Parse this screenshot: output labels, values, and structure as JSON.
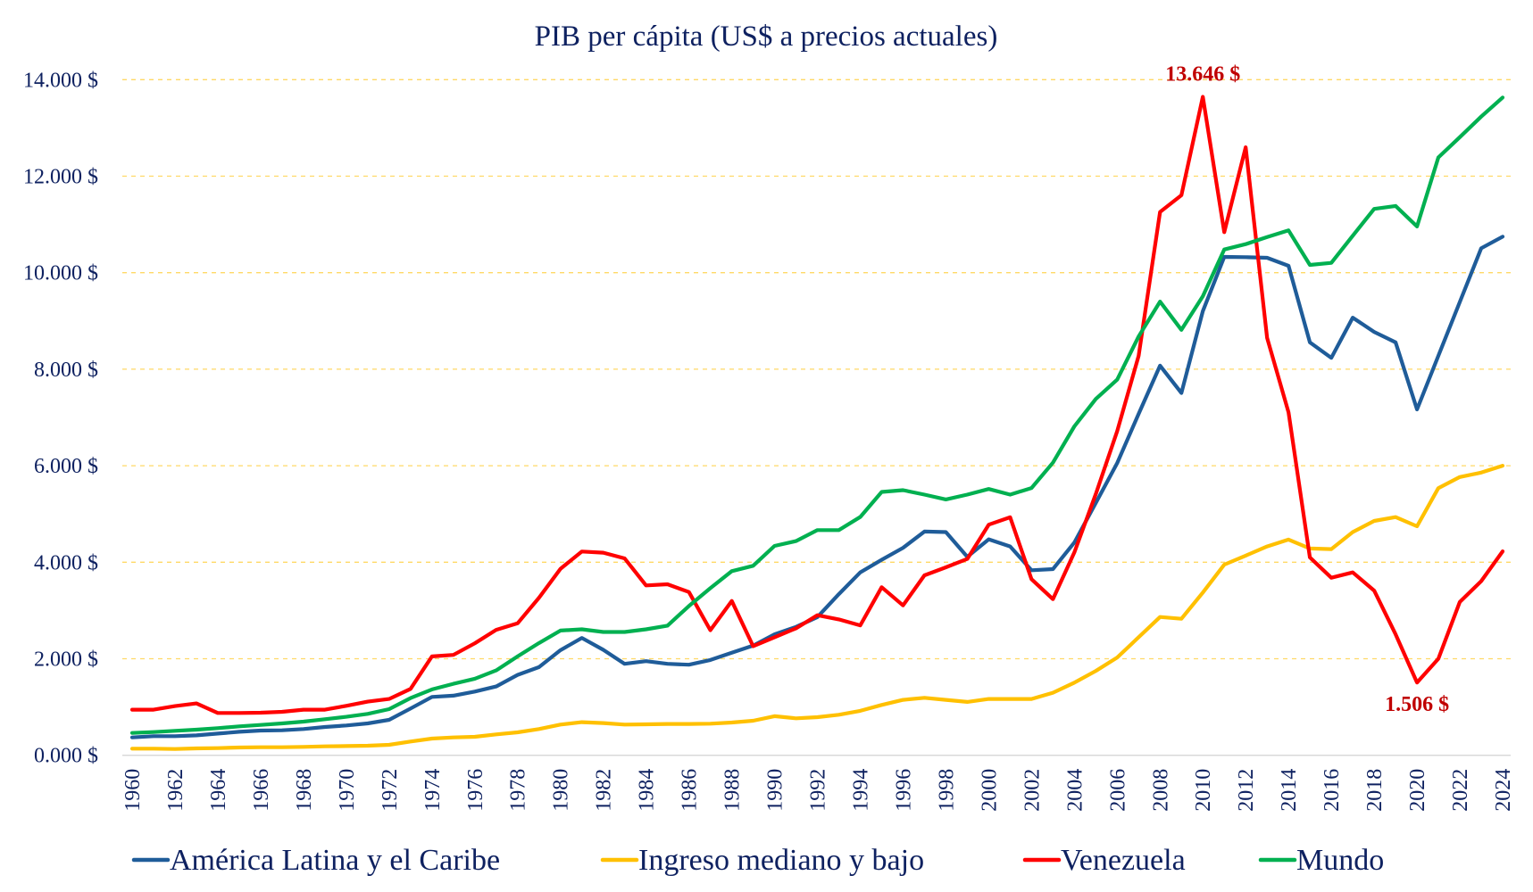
{
  "chart_data": {
    "type": "line",
    "title": "PIB per cápita (US$ a precios actuales)",
    "xlabel": "",
    "ylabel": "",
    "ylim": [
      0,
      14000
    ],
    "yticks": [
      0,
      2000,
      4000,
      6000,
      8000,
      10000,
      12000,
      14000
    ],
    "ytick_labels": [
      "0.000 $",
      "2.000 $",
      "4.000 $",
      "6.000 $",
      "8.000 $",
      "10.000 $",
      "12.000 $",
      "14.000 $"
    ],
    "grid": true,
    "legend_position": "bottom",
    "x": [
      1960,
      1961,
      1962,
      1963,
      1964,
      1965,
      1966,
      1967,
      1968,
      1969,
      1970,
      1971,
      1972,
      1973,
      1974,
      1975,
      1976,
      1977,
      1978,
      1979,
      1980,
      1981,
      1982,
      1983,
      1984,
      1985,
      1986,
      1987,
      1988,
      1989,
      1990,
      1991,
      1992,
      1993,
      1994,
      1995,
      1996,
      1997,
      1998,
      1999,
      2000,
      2001,
      2002,
      2003,
      2004,
      2005,
      2006,
      2007,
      2008,
      2009,
      2010,
      2011,
      2012,
      2013,
      2014,
      2015,
      2016,
      2017,
      2018,
      2019,
      2020,
      2021,
      2022,
      2023,
      2024
    ],
    "xtick_labels": [
      "1960",
      "1962",
      "1964",
      "1966",
      "1968",
      "1970",
      "1972",
      "1974",
      "1976",
      "1978",
      "1980",
      "1982",
      "1984",
      "1986",
      "1988",
      "1990",
      "1992",
      "1994",
      "1996",
      "1998",
      "2000",
      "2002",
      "2004",
      "2006",
      "2008",
      "2010",
      "2012",
      "2014",
      "2016",
      "2018",
      "2020",
      "2022",
      "2024"
    ],
    "series": [
      {
        "name": "América Latina y el Caribe",
        "color": "#1f5c99",
        "values": [
          370,
          395,
          395,
          413,
          450,
          487,
          512,
          518,
          543,
          586,
          617,
          660,
          734,
          969,
          1209,
          1234,
          1320,
          1425,
          1666,
          1826,
          2178,
          2431,
          2185,
          1895,
          1950,
          1895,
          1876,
          1975,
          2123,
          2271,
          2506,
          2660,
          2864,
          3339,
          3790,
          4049,
          4297,
          4636,
          4624,
          4111,
          4475,
          4327,
          3833,
          3858,
          4408,
          5227,
          6055,
          7074,
          8074,
          7506,
          9203,
          10327,
          10321,
          10309,
          10142,
          8556,
          8235,
          9068,
          8772,
          8556,
          7167,
          8278,
          9392,
          10507,
          10747
        ]
      },
      {
        "name": "Ingreso mediano y bajo",
        "color": "#ffc000",
        "values": [
          136,
          136,
          130,
          142,
          148,
          160,
          167,
          167,
          173,
          185,
          191,
          197,
          216,
          284,
          346,
          370,
          383,
          432,
          475,
          543,
          636,
          685,
          667,
          636,
          642,
          648,
          648,
          654,
          679,
          716,
          809,
          765,
          790,
          840,
          920,
          1043,
          1148,
          1191,
          1148,
          1105,
          1166,
          1166,
          1166,
          1296,
          1505,
          1747,
          2025,
          2445,
          2865,
          2828,
          3372,
          3951,
          4136,
          4328,
          4470,
          4284,
          4272,
          4625,
          4856,
          4936,
          4745,
          5536,
          5765,
          5858,
          6000
        ]
      },
      {
        "name": "Venezuela",
        "color": "#ff0000",
        "values": [
          944,
          944,
          1018,
          1074,
          876,
          876,
          882,
          900,
          944,
          944,
          1024,
          1111,
          1166,
          1376,
          2048,
          2079,
          2320,
          2598,
          2733,
          3264,
          3864,
          4222,
          4197,
          4080,
          3519,
          3543,
          3382,
          2592,
          3197,
          2260,
          2445,
          2630,
          2902,
          2815,
          2691,
          3482,
          3105,
          3728,
          3895,
          4068,
          4778,
          4932,
          3648,
          3234,
          4204,
          5413,
          6717,
          8278,
          11259,
          11605,
          13646,
          10840,
          12599,
          8648,
          7105,
          4099,
          3679,
          3790,
          3413,
          2506,
          1506,
          2000,
          3175,
          3608,
          4226
        ]
      },
      {
        "name": "Mundo",
        "color": "#00b050",
        "values": [
          463,
          481,
          506,
          531,
          561,
          598,
          629,
          660,
          697,
          747,
          796,
          858,
          956,
          1185,
          1364,
          1481,
          1586,
          1758,
          2048,
          2326,
          2585,
          2610,
          2555,
          2555,
          2610,
          2685,
          3092,
          3463,
          3815,
          3926,
          4339,
          4438,
          4666,
          4666,
          4938,
          5457,
          5494,
          5401,
          5302,
          5401,
          5518,
          5401,
          5537,
          6062,
          6815,
          7383,
          7784,
          8679,
          9401,
          8815,
          9512,
          10481,
          10592,
          10740,
          10876,
          10160,
          10204,
          10765,
          11321,
          11383,
          10957,
          12389,
          12808,
          13234,
          13630
        ]
      }
    ],
    "annotations": [
      {
        "text": "13.646 $",
        "series": "Venezuela",
        "x": 2010,
        "y": 13646,
        "placement": "above",
        "color": "#c00000"
      },
      {
        "text": "1.506 $",
        "series": "Venezuela",
        "x": 2020,
        "y": 1506,
        "placement": "below",
        "color": "#c00000"
      }
    ]
  }
}
